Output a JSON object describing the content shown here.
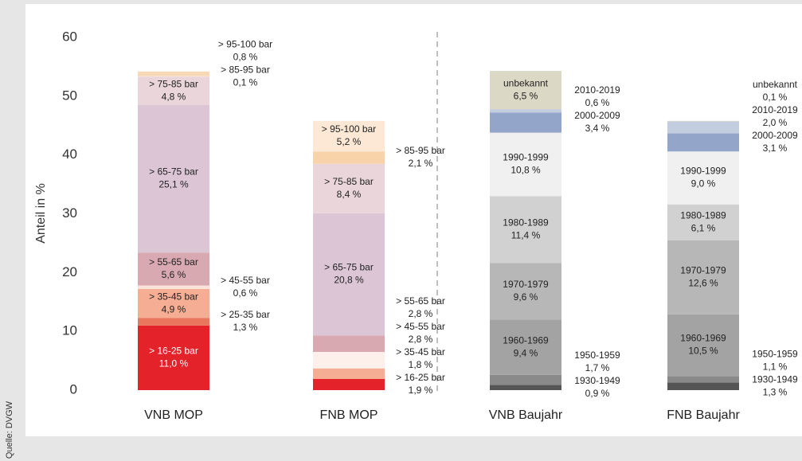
{
  "chart_data": {
    "type": "stacked-bar",
    "y_label": "Anteil in %",
    "source": "Quelle: DVGW",
    "categories": [
      "VNB MOP",
      "FNB MOP",
      "VNB Baujahr",
      "FNB Baujahr"
    ],
    "ylim": [
      0,
      60
    ],
    "yticks": [
      0,
      10,
      20,
      30,
      40,
      50,
      60
    ],
    "grid": false,
    "stacks": [
      {
        "names": [
          "> 16-25 bar",
          "> 25-35 bar",
          "> 35-45 bar",
          "> 45-55 bar",
          "> 55-65 bar",
          "> 65-75 bar",
          "> 75-85 bar",
          "> 85-95 bar",
          "> 95-100 bar"
        ],
        "values": [
          11.0,
          1.3,
          4.9,
          0.6,
          5.6,
          25.1,
          4.8,
          0.1,
          0.8
        ],
        "value_labels": [
          "11,0 %",
          "1,3 %",
          "4,9 %",
          "0,6 %",
          "5,6 %",
          "25,1 %",
          "4,8 %",
          "0,1 %",
          "0,8 %"
        ],
        "colors": [
          "#e42229",
          "#e9765d",
          "#f5ad93",
          "#fbe3d9",
          "#d9a9b1",
          "#dcc5d5",
          "#ead6da",
          "#f3e6e3",
          "#f8d9b6"
        ]
      },
      {
        "names": [
          "> 16-25 bar",
          "> 35-45 bar",
          "> 45-55 bar",
          "> 55-65 bar",
          "> 65-75 bar",
          "> 75-85 bar",
          "> 85-95 bar",
          "> 95-100 bar"
        ],
        "values": [
          1.9,
          1.8,
          2.8,
          2.8,
          20.8,
          8.4,
          2.1,
          5.2
        ],
        "value_labels": [
          "1,9 %",
          "1,8 %",
          "2,8 %",
          "2,8 %",
          "20,8 %",
          "8,4 %",
          "2,1 %",
          "5,2 %"
        ],
        "colors": [
          "#e42229",
          "#f5ad93",
          "#fdf0ea",
          "#d9a9b1",
          "#dcc5d5",
          "#ead6da",
          "#f8d2a8",
          "#fce8d4"
        ]
      },
      {
        "names": [
          "1930-1949",
          "1950-1959",
          "1960-1969",
          "1970-1979",
          "1980-1989",
          "1990-1999",
          "2000-2009",
          "2010-2019",
          "unbekannt"
        ],
        "values": [
          0.9,
          1.7,
          9.4,
          9.6,
          11.4,
          10.8,
          3.4,
          0.6,
          6.5
        ],
        "value_labels": [
          "0,9 %",
          "1,7 %",
          "9,4 %",
          "9,6 %",
          "11,4 %",
          "10,8 %",
          "3,4 %",
          "0,6 %",
          "6,5 %"
        ],
        "colors": [
          "#555555",
          "#8a8a8a",
          "#a3a3a3",
          "#b7b7b7",
          "#d1d1d1",
          "#f0f0f0",
          "#93a6c9",
          "#c3cde0",
          "#dcd8c6"
        ]
      },
      {
        "names": [
          "1930-1949",
          "1950-1959",
          "1960-1969",
          "1970-1979",
          "1980-1989",
          "1990-1999",
          "2000-2009",
          "2010-2019",
          "unbekannt"
        ],
        "values": [
          1.3,
          1.1,
          10.5,
          12.6,
          6.1,
          9.0,
          3.1,
          2.0,
          0.1
        ],
        "value_labels": [
          "1,3 %",
          "1,1 %",
          "10,5 %",
          "12,6 %",
          "6,1 %",
          "9,0 %",
          "3,1 %",
          "2,0 %",
          "0,1 %"
        ],
        "colors": [
          "#555555",
          "#8a8a8a",
          "#a3a3a3",
          "#b7b7b7",
          "#d1d1d1",
          "#f0f0f0",
          "#93a6c9",
          "#c3cde0",
          "#dcd8c6"
        ]
      }
    ]
  }
}
